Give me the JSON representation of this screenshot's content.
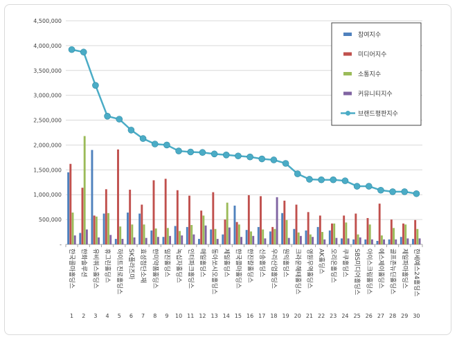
{
  "chart_data": {
    "type": "bar",
    "title": "",
    "xlabel": "",
    "ylabel": "",
    "ylim": [
      0,
      4500000
    ],
    "yticks": [
      0,
      500000,
      1000000,
      1500000,
      2000000,
      2500000,
      3000000,
      3500000,
      4000000,
      4500000
    ],
    "ytick_labels": [
      "-",
      "500,000",
      "1,000,000",
      "1,500,000",
      "2,000,000",
      "2,500,000",
      "3,000,000",
      "3,500,000",
      "4,000,000",
      "4,500,000"
    ],
    "grid": true,
    "legend_position": "top-right",
    "categories": [
      "1",
      "2",
      "3",
      "4",
      "5",
      "6",
      "7",
      "8",
      "9",
      "10",
      "11",
      "12",
      "13",
      "14",
      "15",
      "16",
      "17",
      "18",
      "19",
      "20",
      "21",
      "22",
      "23",
      "24",
      "25",
      "26",
      "27",
      "28",
      "29",
      "30"
    ],
    "category_names": [
      "한국콜마홀딩스",
      "한화솔루션",
      "유비쿼스홀딩스",
      "휴그린홀딩스",
      "하이트진로홀딩스",
      "SK플라즈마",
      "효성첨단소재",
      "한미약품홀딩스",
      "일진홀딩스",
      "녹십자홀딩스",
      "인터파크홀딩스",
      "매일홀딩스",
      "동아쏘시오홀딩스",
      "제일홀딩스",
      "한국콜마홀딩스",
      "한진칼홀딩스",
      "신송홀딩스",
      "우리산업홀딩스",
      "원익홀딩스",
      "크라운해태홀딩스",
      "영원무역홀딩스",
      "AK홀딩스",
      "오리온홀딩스",
      "쿠쿠홀딩스",
      "SBS미디어홀딩스",
      "아이스크림홀딩스",
      "에스제이홀딩스",
      "골프존뉴딘홀딩스",
      "제일파마홀딩스",
      "한세예스24홀딩스"
    ],
    "series": [
      {
        "name": "참여지수",
        "kind": "bar",
        "color": "#4f81bd",
        "values": [
          1450000,
          230000,
          1900000,
          620000,
          110000,
          640000,
          620000,
          280000,
          150000,
          370000,
          350000,
          110000,
          300000,
          200000,
          780000,
          290000,
          350000,
          260000,
          630000,
          310000,
          280000,
          350000,
          280000,
          120000,
          100000,
          100000,
          70000,
          100000,
          150000,
          110000
        ]
      },
      {
        "name": "미디어지수",
        "kind": "bar",
        "color": "#c0504d",
        "values": [
          1620000,
          1140000,
          580000,
          1110000,
          1910000,
          1100000,
          800000,
          1290000,
          1320000,
          1090000,
          980000,
          680000,
          1050000,
          500000,
          450000,
          990000,
          970000,
          350000,
          880000,
          800000,
          650000,
          580000,
          420000,
          580000,
          620000,
          530000,
          820000,
          500000,
          420000,
          490000
        ]
      },
      {
        "name": "소통지수",
        "kind": "bar",
        "color": "#9bbb59",
        "values": [
          640000,
          2180000,
          560000,
          630000,
          360000,
          400000,
          400000,
          320000,
          330000,
          270000,
          390000,
          580000,
          310000,
          840000,
          400000,
          260000,
          300000,
          310000,
          490000,
          240000,
          200000,
          250000,
          420000,
          440000,
          200000,
          400000,
          180000,
          330000,
          400000,
          310000
        ]
      },
      {
        "name": "커뮤니티지수",
        "kind": "bar",
        "color": "#8064a2",
        "values": [
          180000,
          300000,
          140000,
          190000,
          110000,
          140000,
          130000,
          150000,
          170000,
          180000,
          200000,
          380000,
          110000,
          340000,
          150000,
          170000,
          120000,
          950000,
          130000,
          170000,
          150000,
          100000,
          130000,
          120000,
          140000,
          100000,
          100000,
          100000,
          120000,
          120000
        ]
      },
      {
        "name": "브랜드평판지수",
        "kind": "line",
        "color": "#4bacc6",
        "values": [
          3920000,
          3870000,
          3200000,
          2580000,
          2520000,
          2300000,
          2130000,
          2020000,
          2000000,
          1880000,
          1860000,
          1850000,
          1820000,
          1800000,
          1780000,
          1760000,
          1720000,
          1700000,
          1630000,
          1420000,
          1310000,
          1300000,
          1300000,
          1280000,
          1170000,
          1170000,
          1090000,
          1060000,
          1060000,
          1020000
        ]
      }
    ]
  }
}
